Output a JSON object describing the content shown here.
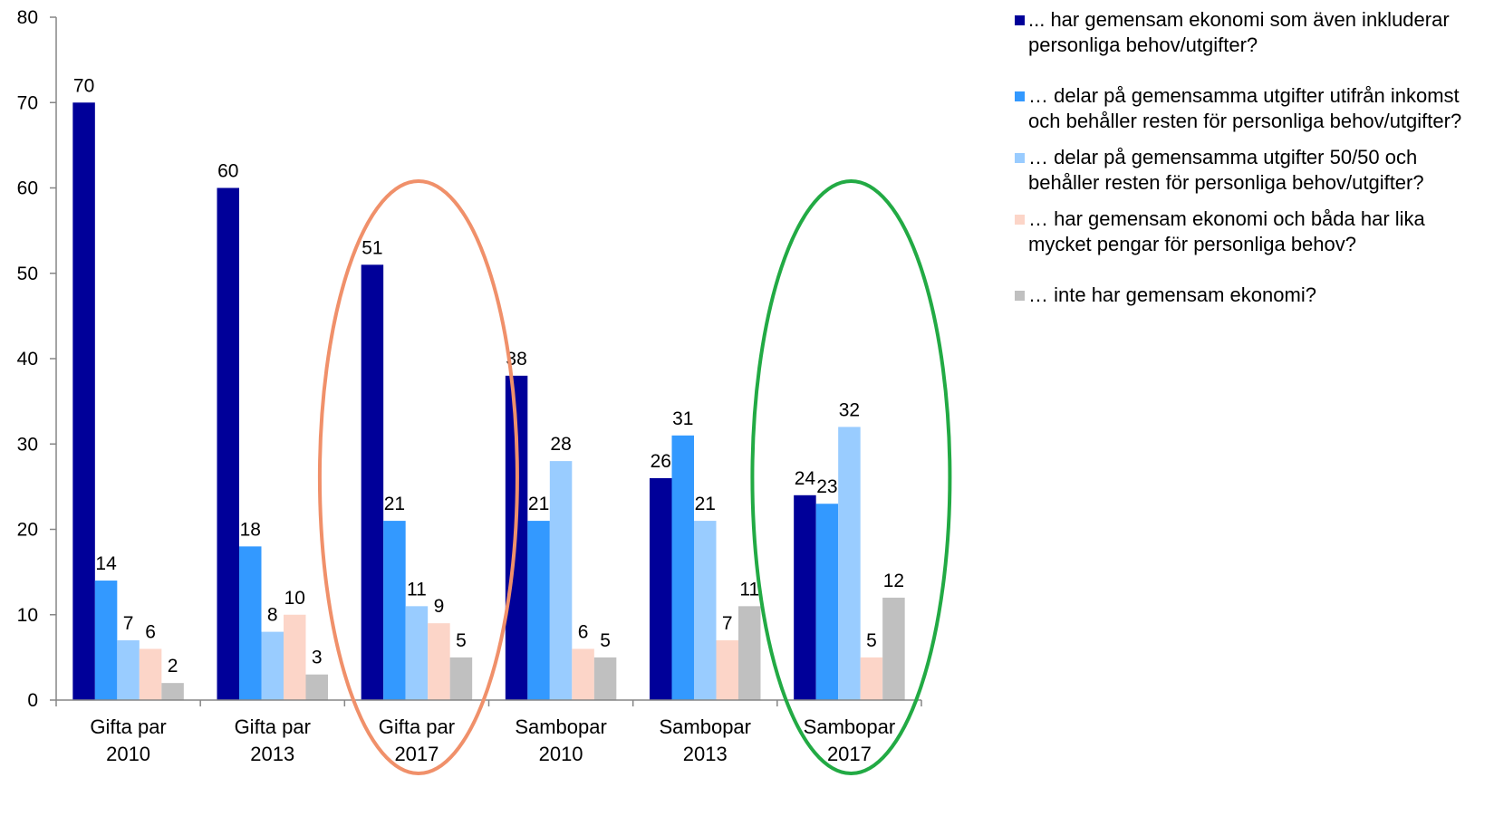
{
  "chart_data": {
    "type": "bar",
    "categories": [
      [
        "Gifta par",
        "2010"
      ],
      [
        "Gifta par",
        "2013"
      ],
      [
        "Gifta par",
        "2017"
      ],
      [
        "Sambopar",
        "2010"
      ],
      [
        "Sambopar",
        "2013"
      ],
      [
        "Sambopar",
        "2017"
      ]
    ],
    "series": [
      {
        "name": "... har gemensam ekonomi som även inkluderar personliga behov/utgifter?",
        "color": "#000099",
        "values": [
          70,
          60,
          51,
          38,
          26,
          24
        ]
      },
      {
        "name": "… delar på gemensamma utgifter utifrån inkomst och behåller resten för personliga behov/utgifter?",
        "color": "#3399ff",
        "values": [
          14,
          18,
          21,
          21,
          31,
          23
        ]
      },
      {
        "name": "… delar på gemensamma utgifter 50/50 och behåller resten för personliga behov/utgifter?",
        "color": "#99ccff",
        "values": [
          7,
          8,
          11,
          28,
          21,
          32
        ]
      },
      {
        "name": "… har gemensam ekonomi och båda har lika mycket pengar för personliga behov?",
        "color": "#fcd5c8",
        "values": [
          6,
          10,
          9,
          6,
          7,
          5
        ]
      },
      {
        "name": "… inte har gemensam ekonomi?",
        "color": "#c0c0c0",
        "values": [
          2,
          3,
          5,
          5,
          11,
          12
        ]
      }
    ],
    "ylim": [
      0,
      80
    ],
    "yticks": [
      0,
      10,
      20,
      30,
      40,
      50,
      60,
      70,
      80
    ],
    "legend_position": "right",
    "grid": false,
    "highlights": [
      {
        "category_index": 2,
        "color": "#f0906a"
      },
      {
        "category_index": 5,
        "color": "#22aa44"
      }
    ]
  }
}
